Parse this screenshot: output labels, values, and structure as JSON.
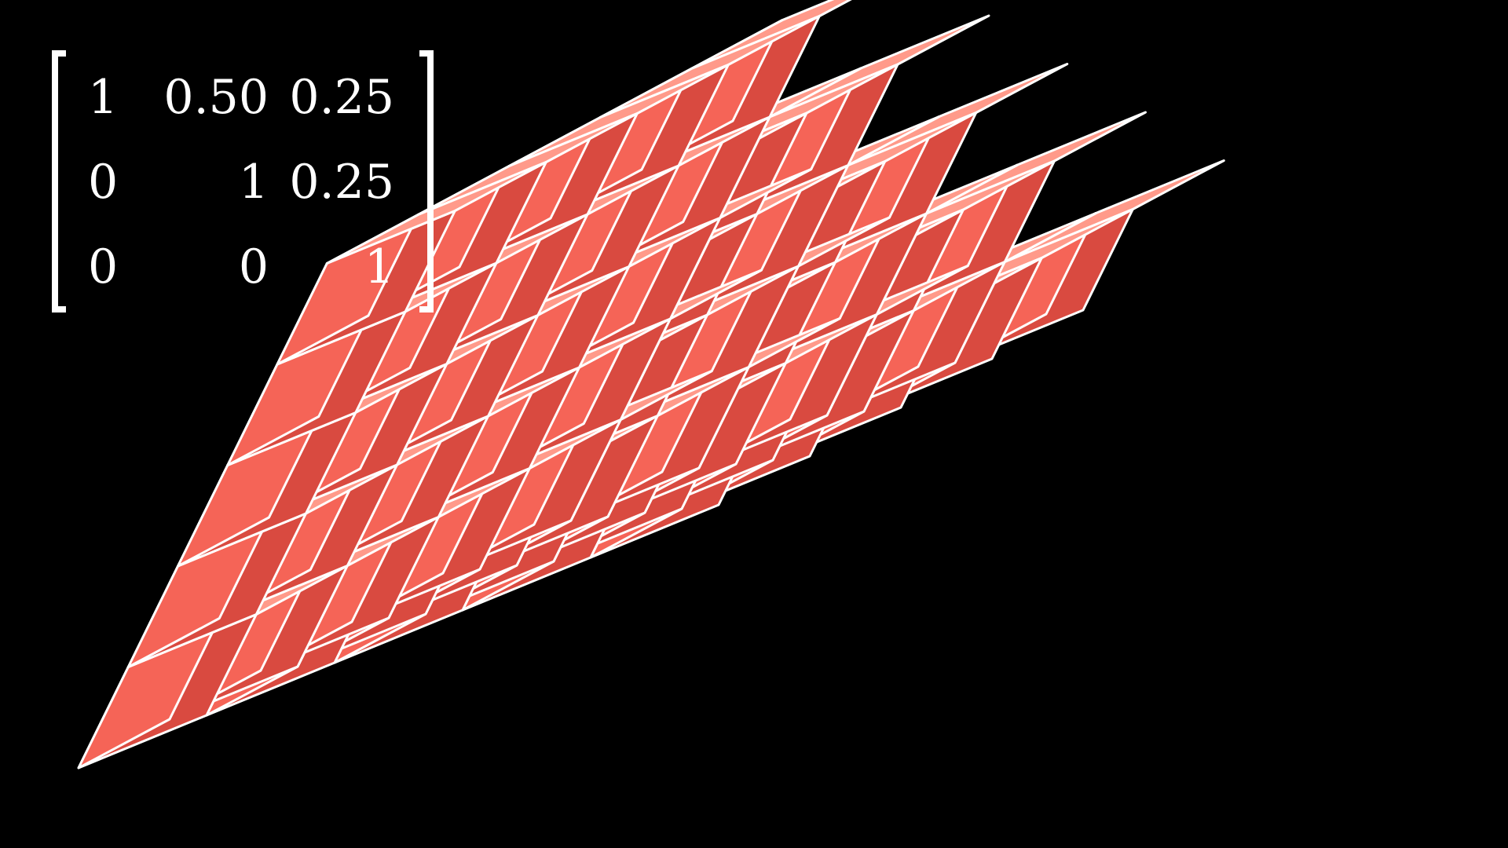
{
  "matrix": {
    "rows": [
      [
        "1",
        "0.50",
        "0.25"
      ],
      [
        "0",
        "1",
        "0.25"
      ],
      [
        "0",
        "0",
        "1"
      ]
    ]
  },
  "scene": {
    "shape": "sheared-block-staircase",
    "shear": [
      [
        1,
        0.5,
        0.25
      ],
      [
        0,
        1,
        0.25
      ],
      [
        0,
        0,
        1
      ]
    ],
    "colors": {
      "background": "#000000",
      "edge": "#ffffff",
      "top_face": "#ff9a8a",
      "front_face": "#f56457",
      "side_face": "#d94a40"
    }
  }
}
